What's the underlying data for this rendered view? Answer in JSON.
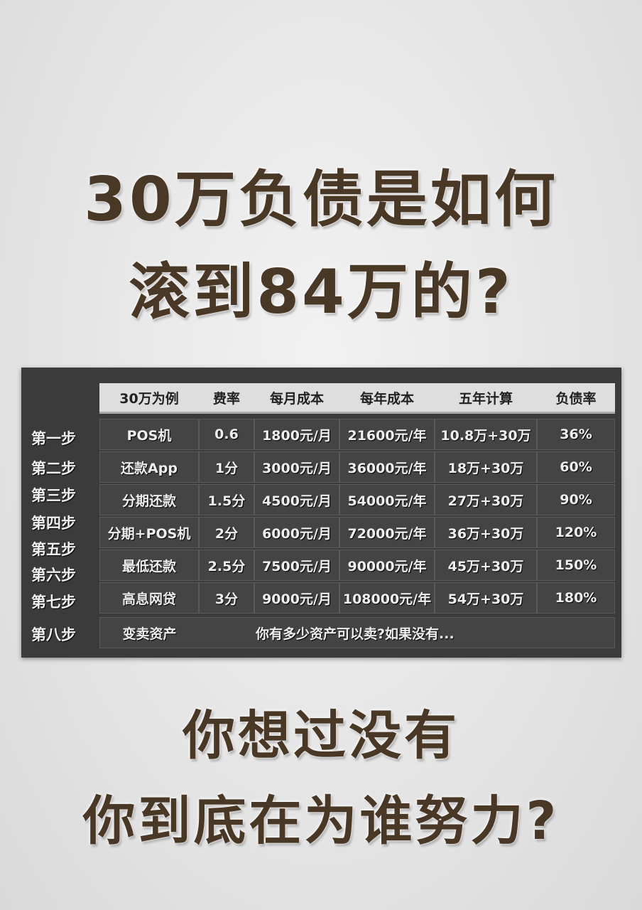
{
  "title": {
    "line1": "30万负债是如何",
    "line2": "滚到84万的?"
  },
  "table": {
    "headers": [
      "30万为例",
      "费率",
      "每月成本",
      "每年成本",
      "五年计算",
      "负债率"
    ],
    "steps": [
      "第一步",
      "第二步",
      "第三步",
      "第四步",
      "第五步",
      "第六步",
      "第七步",
      "第八步"
    ],
    "rows": [
      [
        "POS机",
        "0.6",
        "1800元/月",
        "21600元/年",
        "10.8万+30万",
        "36%"
      ],
      [
        "还款App",
        "1分",
        "3000元/月",
        "36000元/年",
        "18万+30万",
        "60%"
      ],
      [
        "分期还款",
        "1.5分",
        "4500元/月",
        "54000元/年",
        "27万+30万",
        "90%"
      ],
      [
        "分期+POS机",
        "2分",
        "6000元/月",
        "72000元/年",
        "36万+30万",
        "120%"
      ],
      [
        "最低还款",
        "2.5分",
        "7500元/月",
        "90000元/年",
        "45万+30万",
        "150%"
      ],
      [
        "高息网贷",
        "3分",
        "9000元/月",
        "108000元/年",
        "54万+30万",
        "180%"
      ]
    ],
    "last_row": {
      "label": "变卖资产",
      "text": "你有多少资产可以卖?如果没有..."
    }
  },
  "bottom": {
    "line1": "你想过没有",
    "line2": "你到底在为谁努力?"
  },
  "colors": {
    "title": "#4a3826",
    "board": "#3b3b3b",
    "header": "#dedede"
  }
}
